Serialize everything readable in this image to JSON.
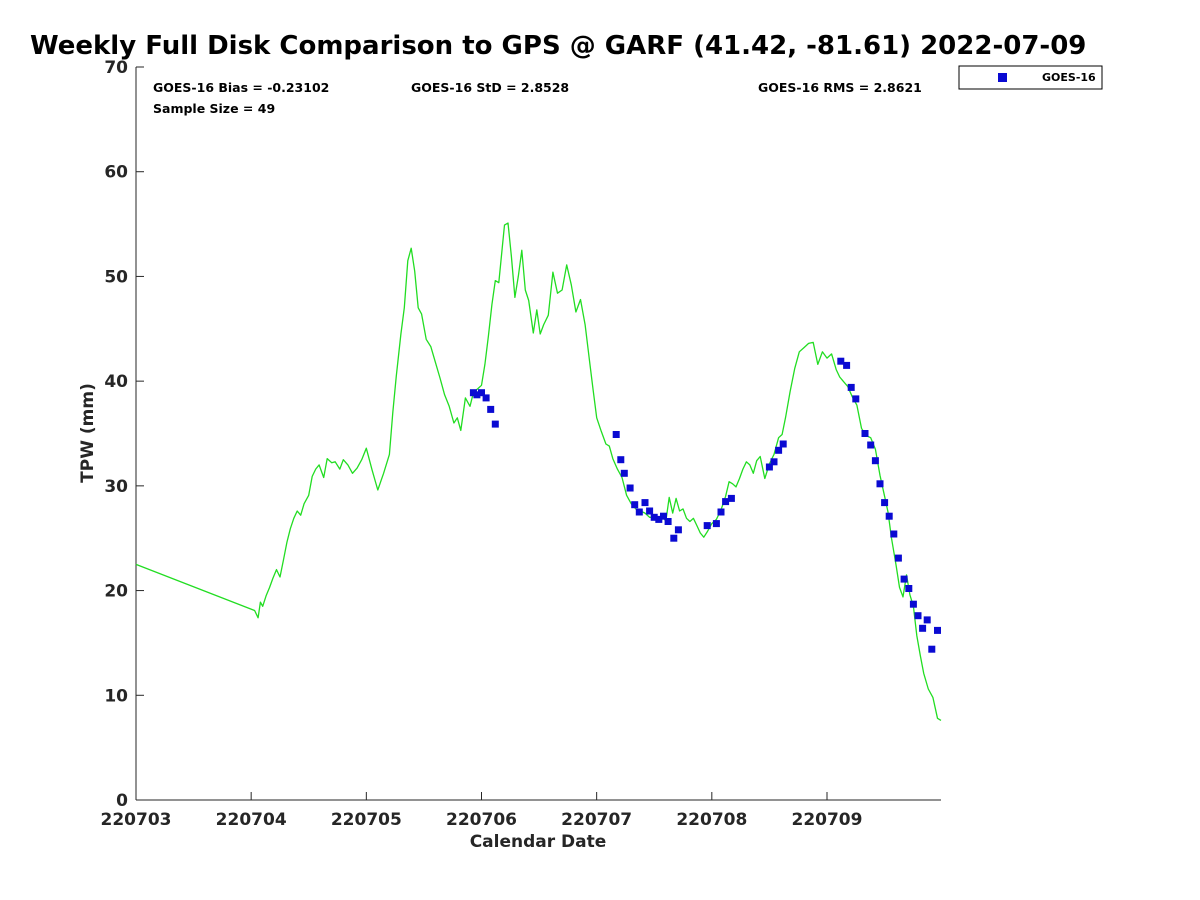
{
  "chart_data": {
    "type": "line",
    "title": "Weekly Full Disk Comparison to GPS @ GARF (41.42, -81.61) 2022-07-09",
    "xlabel": "Calendar Date",
    "ylabel": "TPW (mm)",
    "ylim": [
      0,
      70
    ],
    "yticks": [
      0,
      10,
      20,
      30,
      40,
      50,
      60,
      70
    ],
    "xlim": [
      220703,
      220709.99
    ],
    "xtick_values": [
      220703,
      220704,
      220705,
      220706,
      220707,
      220708,
      220709
    ],
    "xtick_labels": [
      "220703",
      "220704",
      "220705",
      "220706",
      "220707",
      "220708",
      "220709"
    ],
    "grid": false,
    "legend": {
      "position": "outside-top-right",
      "entries": [
        "GOES-16"
      ]
    },
    "stats": {
      "bias": "GOES-16 Bias = -0.23102",
      "std": "GOES-16 StD = 2.8528",
      "rms": "GOES-16 RMS = 2.8621",
      "sample": "Sample Size = 49"
    },
    "colors": {
      "gps_line": "#22dd22",
      "goes_marker": "#0a0ad2"
    },
    "series": [
      {
        "style": "line",
        "points": [
          [
            220703.0,
            22.5
          ],
          [
            220704.03,
            18.1
          ],
          [
            220704.06,
            17.4
          ],
          [
            220704.08,
            18.9
          ],
          [
            220704.1,
            18.5
          ],
          [
            220704.13,
            19.5
          ],
          [
            220704.16,
            20.3
          ],
          [
            220704.19,
            21.2
          ],
          [
            220704.22,
            22.0
          ],
          [
            220704.25,
            21.3
          ],
          [
            220704.28,
            22.9
          ],
          [
            220704.31,
            24.6
          ],
          [
            220704.34,
            25.9
          ],
          [
            220704.37,
            26.9
          ],
          [
            220704.4,
            27.6
          ],
          [
            220704.43,
            27.2
          ],
          [
            220704.46,
            28.3
          ],
          [
            220704.5,
            29.1
          ],
          [
            220704.53,
            30.9
          ],
          [
            220704.56,
            31.6
          ],
          [
            220704.59,
            32.0
          ],
          [
            220704.63,
            30.8
          ],
          [
            220704.66,
            32.6
          ],
          [
            220704.7,
            32.2
          ],
          [
            220704.73,
            32.3
          ],
          [
            220704.77,
            31.6
          ],
          [
            220704.8,
            32.5
          ],
          [
            220704.84,
            32.0
          ],
          [
            220704.88,
            31.2
          ],
          [
            220704.92,
            31.7
          ],
          [
            220704.96,
            32.5
          ],
          [
            220705.0,
            33.6
          ],
          [
            220705.05,
            31.5
          ],
          [
            220705.1,
            29.6
          ],
          [
            220705.15,
            31.2
          ],
          [
            220705.2,
            33.0
          ],
          [
            220705.23,
            37.0
          ],
          [
            220705.26,
            40.5
          ],
          [
            220705.3,
            44.5
          ],
          [
            220705.33,
            47.0
          ],
          [
            220705.36,
            51.5
          ],
          [
            220705.39,
            52.7
          ],
          [
            220705.42,
            50.5
          ],
          [
            220705.45,
            47.0
          ],
          [
            220705.48,
            46.4
          ],
          [
            220705.52,
            44.0
          ],
          [
            220705.56,
            43.3
          ],
          [
            220705.6,
            41.8
          ],
          [
            220705.64,
            40.3
          ],
          [
            220705.68,
            38.7
          ],
          [
            220705.72,
            37.6
          ],
          [
            220705.76,
            36.0
          ],
          [
            220705.79,
            36.5
          ],
          [
            220705.82,
            35.3
          ],
          [
            220705.86,
            38.4
          ],
          [
            220705.9,
            37.6
          ],
          [
            220705.93,
            38.9
          ],
          [
            220705.96,
            39.2
          ],
          [
            220706.0,
            39.6
          ],
          [
            220706.03,
            41.6
          ],
          [
            220706.06,
            44.3
          ],
          [
            220706.09,
            47.3
          ],
          [
            220706.12,
            49.6
          ],
          [
            220706.15,
            49.4
          ],
          [
            220706.18,
            52.7
          ],
          [
            220706.2,
            54.9
          ],
          [
            220706.23,
            55.1
          ],
          [
            220706.26,
            51.9
          ],
          [
            220706.29,
            48.0
          ],
          [
            220706.32,
            50.0
          ],
          [
            220706.35,
            52.5
          ],
          [
            220706.38,
            48.7
          ],
          [
            220706.41,
            47.7
          ],
          [
            220706.45,
            44.6
          ],
          [
            220706.48,
            46.8
          ],
          [
            220706.51,
            44.5
          ],
          [
            220706.54,
            45.4
          ],
          [
            220706.58,
            46.3
          ],
          [
            220706.62,
            50.4
          ],
          [
            220706.66,
            48.4
          ],
          [
            220706.7,
            48.7
          ],
          [
            220706.74,
            51.1
          ],
          [
            220706.78,
            49.2
          ],
          [
            220706.82,
            46.6
          ],
          [
            220706.86,
            47.8
          ],
          [
            220706.9,
            45.4
          ],
          [
            220706.94,
            41.8
          ],
          [
            220706.97,
            39.1
          ],
          [
            220707.0,
            36.5
          ],
          [
            220707.04,
            35.2
          ],
          [
            220707.08,
            34.0
          ],
          [
            220707.11,
            33.8
          ],
          [
            220707.14,
            32.6
          ],
          [
            220707.18,
            31.6
          ],
          [
            220707.22,
            30.8
          ],
          [
            220707.26,
            29.1
          ],
          [
            220707.3,
            28.3
          ],
          [
            220707.34,
            27.8
          ],
          [
            220707.38,
            27.6
          ],
          [
            220707.42,
            27.4
          ],
          [
            220707.46,
            27.0
          ],
          [
            220707.5,
            27.0
          ],
          [
            220707.54,
            26.8
          ],
          [
            220707.57,
            27.2
          ],
          [
            220707.6,
            26.6
          ],
          [
            220707.63,
            28.9
          ],
          [
            220707.66,
            27.4
          ],
          [
            220707.69,
            28.8
          ],
          [
            220707.72,
            27.6
          ],
          [
            220707.75,
            27.8
          ],
          [
            220707.78,
            26.9
          ],
          [
            220707.81,
            26.6
          ],
          [
            220707.84,
            26.9
          ],
          [
            220707.87,
            26.2
          ],
          [
            220707.9,
            25.5
          ],
          [
            220707.93,
            25.1
          ],
          [
            220707.96,
            25.6
          ],
          [
            220708.0,
            26.4
          ],
          [
            220708.04,
            26.8
          ],
          [
            220708.08,
            27.7
          ],
          [
            220708.12,
            29.0
          ],
          [
            220708.15,
            30.4
          ],
          [
            220708.18,
            30.2
          ],
          [
            220708.21,
            29.9
          ],
          [
            220708.24,
            30.7
          ],
          [
            220708.27,
            31.6
          ],
          [
            220708.3,
            32.3
          ],
          [
            220708.33,
            32.0
          ],
          [
            220708.36,
            31.2
          ],
          [
            220708.39,
            32.4
          ],
          [
            220708.42,
            32.8
          ],
          [
            220708.46,
            30.7
          ],
          [
            220708.5,
            32.1
          ],
          [
            220708.54,
            33.0
          ],
          [
            220708.58,
            34.6
          ],
          [
            220708.61,
            34.9
          ],
          [
            220708.64,
            36.5
          ],
          [
            220708.68,
            39.0
          ],
          [
            220708.72,
            41.2
          ],
          [
            220708.76,
            42.8
          ],
          [
            220708.8,
            43.2
          ],
          [
            220708.84,
            43.6
          ],
          [
            220708.88,
            43.7
          ],
          [
            220708.92,
            41.6
          ],
          [
            220708.96,
            42.8
          ],
          [
            220709.0,
            42.2
          ],
          [
            220709.04,
            42.6
          ],
          [
            220709.08,
            41.1
          ],
          [
            220709.11,
            40.4
          ],
          [
            220709.14,
            40.0
          ],
          [
            220709.18,
            39.5
          ],
          [
            220709.22,
            38.5
          ],
          [
            220709.26,
            37.7
          ],
          [
            220709.3,
            35.5
          ],
          [
            220709.34,
            34.8
          ],
          [
            220709.38,
            34.6
          ],
          [
            220709.42,
            33.5
          ],
          [
            220709.46,
            31.0
          ],
          [
            220709.5,
            29.0
          ],
          [
            220709.53,
            27.5
          ],
          [
            220709.56,
            25.0
          ],
          [
            220709.6,
            22.4
          ],
          [
            220709.63,
            20.3
          ],
          [
            220709.66,
            19.4
          ],
          [
            220709.69,
            21.5
          ],
          [
            220709.72,
            19.6
          ],
          [
            220709.75,
            18.5
          ],
          [
            220709.78,
            15.7
          ],
          [
            220709.81,
            13.8
          ],
          [
            220709.84,
            12.1
          ],
          [
            220709.88,
            10.6
          ],
          [
            220709.92,
            9.8
          ],
          [
            220709.96,
            7.8
          ],
          [
            220709.99,
            7.6
          ]
        ]
      },
      {
        "name": "GOES-16",
        "style": "markers",
        "points": [
          [
            220705.93,
            38.9
          ],
          [
            220705.96,
            38.7
          ],
          [
            220706.0,
            38.9
          ],
          [
            220706.04,
            38.4
          ],
          [
            220706.08,
            37.3
          ],
          [
            220706.12,
            35.9
          ],
          [
            220707.17,
            34.9
          ],
          [
            220707.21,
            32.5
          ],
          [
            220707.24,
            31.2
          ],
          [
            220707.29,
            29.8
          ],
          [
            220707.33,
            28.2
          ],
          [
            220707.37,
            27.5
          ],
          [
            220707.42,
            28.4
          ],
          [
            220707.46,
            27.6
          ],
          [
            220707.5,
            27.0
          ],
          [
            220707.54,
            26.8
          ],
          [
            220707.58,
            27.1
          ],
          [
            220707.62,
            26.6
          ],
          [
            220707.67,
            25.0
          ],
          [
            220707.71,
            25.8
          ],
          [
            220707.96,
            26.2
          ],
          [
            220708.04,
            26.4
          ],
          [
            220708.08,
            27.5
          ],
          [
            220708.12,
            28.5
          ],
          [
            220708.17,
            28.8
          ],
          [
            220708.5,
            31.8
          ],
          [
            220708.54,
            32.3
          ],
          [
            220708.58,
            33.4
          ],
          [
            220708.62,
            34.0
          ],
          [
            220709.12,
            41.9
          ],
          [
            220709.17,
            41.5
          ],
          [
            220709.21,
            39.4
          ],
          [
            220709.25,
            38.3
          ],
          [
            220709.33,
            35.0
          ],
          [
            220709.38,
            33.9
          ],
          [
            220709.42,
            32.4
          ],
          [
            220709.46,
            30.2
          ],
          [
            220709.5,
            28.4
          ],
          [
            220709.54,
            27.1
          ],
          [
            220709.58,
            25.4
          ],
          [
            220709.62,
            23.1
          ],
          [
            220709.67,
            21.1
          ],
          [
            220709.71,
            20.2
          ],
          [
            220709.75,
            18.7
          ],
          [
            220709.79,
            17.6
          ],
          [
            220709.83,
            16.4
          ],
          [
            220709.87,
            17.2
          ],
          [
            220709.91,
            14.4
          ],
          [
            220709.96,
            16.2
          ]
        ]
      }
    ]
  }
}
